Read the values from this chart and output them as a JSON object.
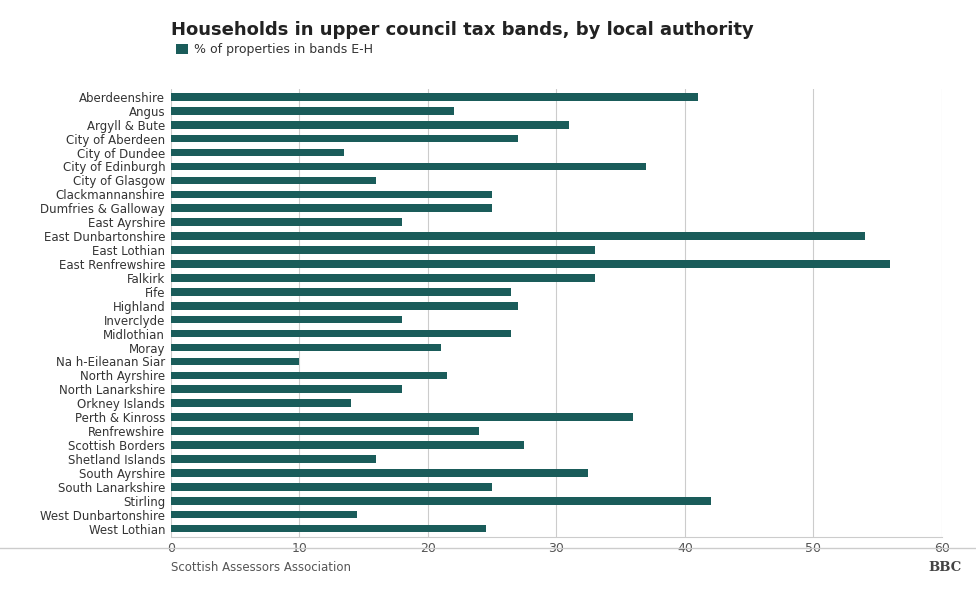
{
  "title": "Households in upper council tax bands, by local authority",
  "legend_label": "% of properties in bands E-H",
  "bar_color": "#1a5c5a",
  "background_color": "#ffffff",
  "footer_left": "Scottish Assessors Association",
  "footer_right": "BBC",
  "xlim": [
    0,
    60
  ],
  "xticks": [
    0,
    10,
    20,
    30,
    40,
    50,
    60
  ],
  "categories": [
    "Aberdeenshire",
    "Angus",
    "Argyll & Bute",
    "City of Aberdeen",
    "City of Dundee",
    "City of Edinburgh",
    "City of Glasgow",
    "Clackmannanshire",
    "Dumfries & Galloway",
    "East Ayrshire",
    "East Dunbartonshire",
    "East Lothian",
    "East Renfrewshire",
    "Falkirk",
    "Fife",
    "Highland",
    "Inverclyde",
    "Midlothian",
    "Moray",
    "Na h-Eileanan Siar",
    "North Ayrshire",
    "North Lanarkshire",
    "Orkney Islands",
    "Perth & Kinross",
    "Renfrewshire",
    "Scottish Borders",
    "Shetland Islands",
    "South Ayrshire",
    "South Lanarkshire",
    "Stirling",
    "West Dunbartonshire",
    "West Lothian"
  ],
  "values": [
    41.0,
    22.0,
    31.0,
    27.0,
    13.5,
    37.0,
    16.0,
    25.0,
    25.0,
    18.0,
    54.0,
    33.0,
    56.0,
    33.0,
    26.5,
    27.0,
    18.0,
    26.5,
    21.0,
    10.0,
    21.5,
    18.0,
    14.0,
    36.0,
    24.0,
    27.5,
    16.0,
    32.5,
    25.0,
    42.0,
    14.5,
    24.5
  ],
  "title_fontsize": 13,
  "legend_fontsize": 9,
  "tick_fontsize": 9,
  "ytick_fontsize": 8.5
}
